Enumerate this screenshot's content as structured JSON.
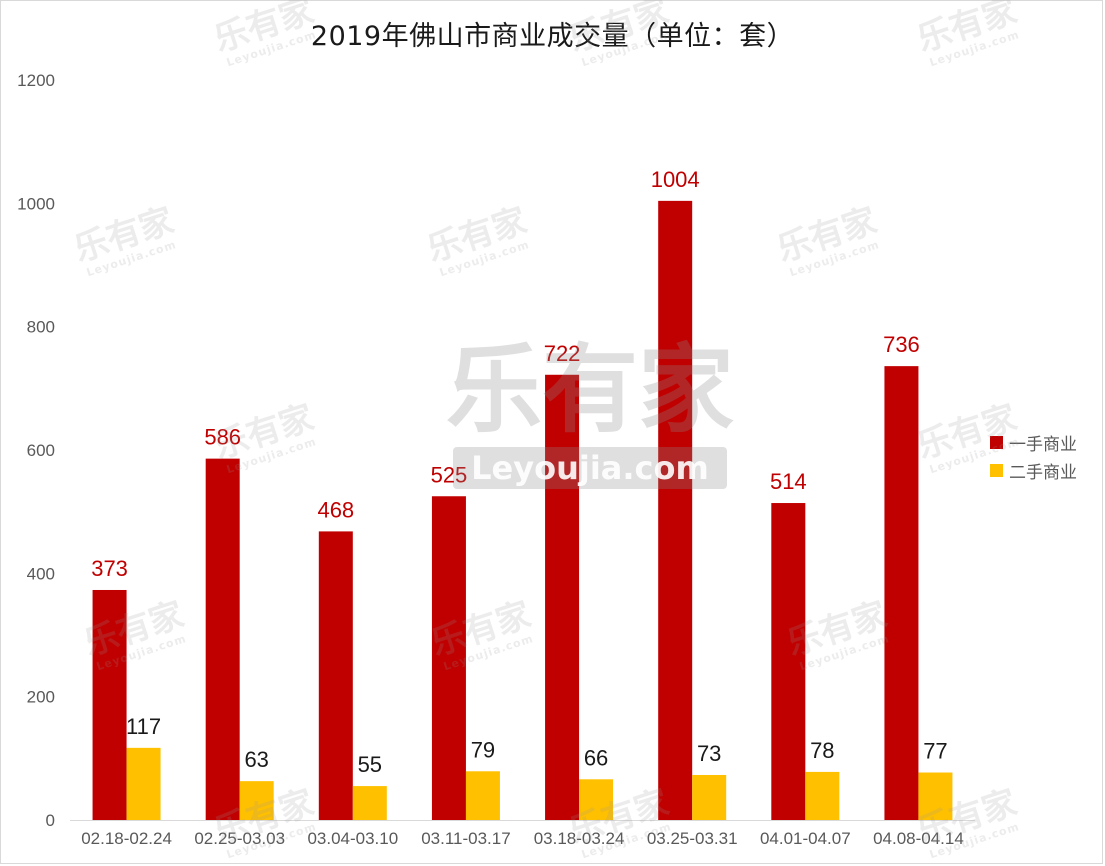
{
  "chart_data": {
    "type": "bar",
    "title": "2019年佛山市商业成交量（单位：套）",
    "categories": [
      "02.18-02.24",
      "02.25-03.03",
      "03.04-03.10",
      "03.11-03.17",
      "03.18-03.24",
      "03.25-03.31",
      "04.01-04.07",
      "04.08-04.14"
    ],
    "series": [
      {
        "name": "一手商业",
        "color": "#c00000",
        "values": [
          373,
          586,
          468,
          525,
          722,
          1004,
          514,
          736
        ]
      },
      {
        "name": "二手商业",
        "color": "#ffc000",
        "values": [
          117,
          63,
          55,
          79,
          66,
          73,
          78,
          77
        ]
      }
    ],
    "xlabel": "",
    "ylabel": "",
    "ylim": [
      0,
      1200
    ],
    "yticks": [
      0,
      200,
      400,
      600,
      800,
      1000,
      1200
    ],
    "grid": false,
    "legend_position": "right"
  },
  "watermark": {
    "brand": "乐有家",
    "domain": "Leyoujia.com",
    "registered_mark": "®"
  }
}
